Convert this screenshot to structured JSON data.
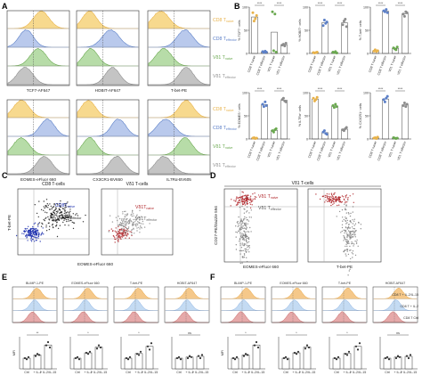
{
  "colors": {
    "cd8_naive": "#e8b24a",
    "cd8_effector": "#5b7fc7",
    "vd1_naive": "#6aa84f",
    "vd1_effector": "#8c8c8c",
    "fill_cd8_naive": "#f7d98e",
    "fill_cd8_effector": "#b9c9ec",
    "fill_vd1_naive": "#b7dca8",
    "fill_vd1_effector": "#c4c4c4",
    "dot_red": "#b0262a",
    "dot_blue": "#1c2fae",
    "dot_black": "#1a1a1a",
    "e_orange": "#e8a23a",
    "e_blue": "#86aee0",
    "e_red": "#c45a5a"
  },
  "panel_letters": [
    "A",
    "B",
    "C",
    "D",
    "E",
    "F"
  ],
  "panelA": {
    "row1_markers": [
      "TCF7-AF647",
      "HOBIT-AF647",
      "T-bet-PE"
    ],
    "row2_markers": [
      "EOMES-eFluor 660",
      "CX3CR1-BV650",
      "IL7Rα-BV605"
    ],
    "legend": [
      {
        "label": "CD8 T",
        "sub": "naive"
      },
      {
        "label": "CD8 T",
        "sub": "effector"
      },
      {
        "label": "Vδ1 T",
        "sub": "naive"
      },
      {
        "label": "Vδ1 T",
        "sub": "effector"
      }
    ]
  },
  "panelB": {
    "ylabels": [
      "% TCF7⁺ cells",
      "% HOBIT⁺ cells",
      "% T-bet⁺ cells",
      "% EOMES⁺ cells",
      "% IL7Rα⁺ cells",
      "% CX3CR1⁺ cells"
    ],
    "xcats": [
      "CD8 T naive",
      "CD8 T effector",
      "Vδ1 T naive",
      "Vδ1 T effector"
    ],
    "sig": "****"
  },
  "panelC": {
    "gates": [
      "CD8 T-cells",
      "Vδ1 T-cells"
    ],
    "xaxis": "EOMES-eFluor 660",
    "yaxis": "T-bet-PE",
    "legend_left": [
      {
        "label": "CD8T",
        "sub": "naive"
      },
      {
        "label": "CD8T",
        "sub": "effector"
      }
    ],
    "legend_right": [
      {
        "label": "Vδ1T",
        "sub": "naive"
      },
      {
        "label": "Vδ1T",
        "sub": "effector"
      }
    ]
  },
  "panelD": {
    "gate": "Vδ1 T-cells",
    "xaxis_left": "EOMES-eFluor 660",
    "xaxis_right": "T-bet-PE",
    "yaxis": "CD27-PE/Dazzle 594",
    "legend": [
      {
        "label": "Vδ1 T",
        "sub": "naive"
      },
      {
        "label": "Vδ1 T",
        "sub": "effector"
      }
    ]
  },
  "panelE": {
    "markers": [
      "BLIMP-1-PE",
      "EOMES-eFluor 660",
      "T-bet-PE",
      "HOBIT-AF647"
    ],
    "ylabel": "MFI",
    "xcats": [
      "Ctrl",
      "+ IL-2",
      "+ IL-2/IL-15"
    ],
    "sig": [
      "**",
      "*",
      "*",
      "ns"
    ]
  },
  "panelF": {
    "markers": [
      "BLIMP-1-PE",
      "EOMES-eFluor 660",
      "T-bet-PE",
      "HOBIT-AF647"
    ],
    "legend": [
      "CD8 T + IL-2/IL-15",
      "CD8 T + IL-2",
      "CD8 T Ctrl"
    ],
    "ylabel": "MFI",
    "xcats": [
      "Ctrl",
      "+ IL-2",
      "+ IL-2/IL-15"
    ],
    "sig": [
      "*",
      "*",
      "*",
      "ns"
    ]
  }
}
